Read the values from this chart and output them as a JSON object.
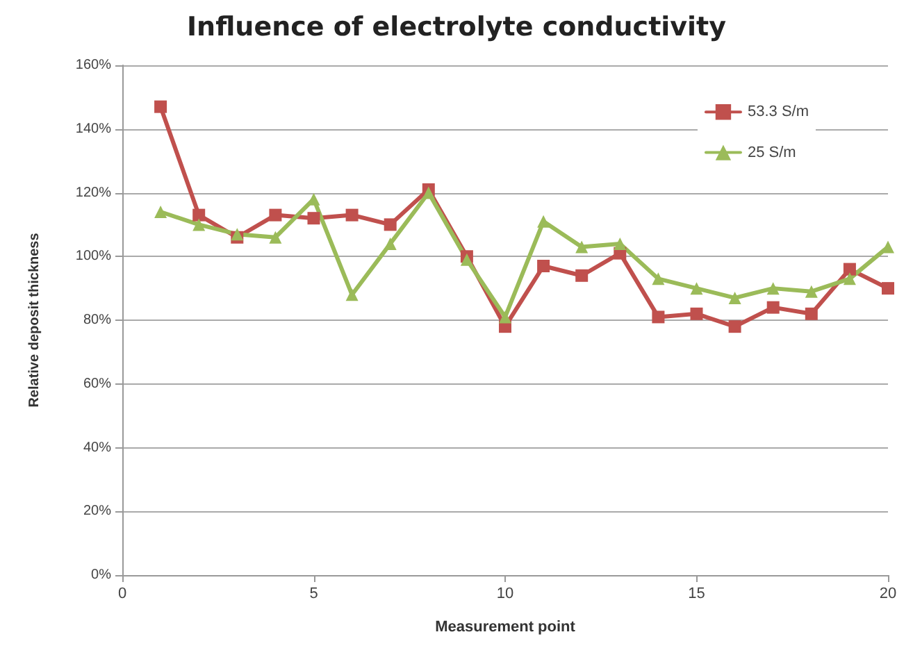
{
  "chart_data": {
    "type": "line",
    "title": "Influence of electrolyte conductivity",
    "xlabel": "Measurement point",
    "ylabel": "Relative deposit thickness",
    "x": [
      1,
      2,
      3,
      4,
      5,
      6,
      7,
      8,
      9,
      10,
      11,
      12,
      13,
      14,
      15,
      16,
      17,
      18,
      19,
      20
    ],
    "series": [
      {
        "name": "53.3 S/m",
        "color": "#c0504d",
        "marker": "square",
        "values": [
          147,
          113,
          106,
          113,
          112,
          113,
          110,
          121,
          100,
          78,
          97,
          94,
          101,
          81,
          82,
          78,
          84,
          82,
          96,
          90
        ]
      },
      {
        "name": "25 S/m",
        "color": "#9bbb59",
        "marker": "triangle",
        "values": [
          114,
          110,
          107,
          106,
          118,
          88,
          104,
          120,
          99,
          81,
          111,
          103,
          104,
          93,
          90,
          87,
          90,
          89,
          93,
          103
        ]
      }
    ],
    "xlim": [
      0,
      20
    ],
    "xticks": [
      0,
      5,
      10,
      15,
      20
    ],
    "ylim": [
      0,
      160
    ],
    "yticks": [
      {
        "value": 0,
        "label": "0%"
      },
      {
        "value": 20,
        "label": "20%"
      },
      {
        "value": 40,
        "label": "40%"
      },
      {
        "value": 60,
        "label": "60%"
      },
      {
        "value": 80,
        "label": "80%"
      },
      {
        "value": 100,
        "label": "100%"
      },
      {
        "value": 120,
        "label": "120%"
      },
      {
        "value": 140,
        "label": "140%"
      },
      {
        "value": 160,
        "label": "160%"
      }
    ],
    "grid": "y",
    "legend": "top right",
    "line_style": "solid"
  }
}
